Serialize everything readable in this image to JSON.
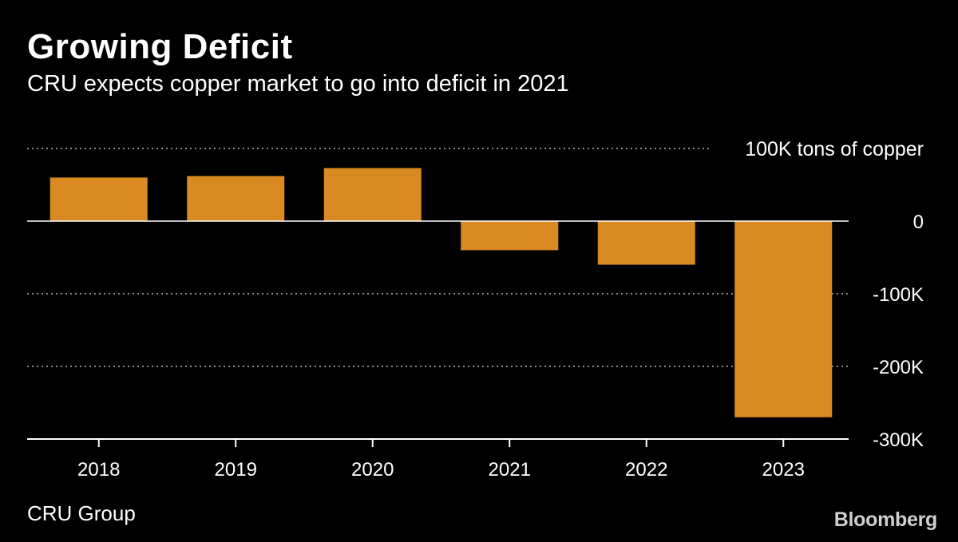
{
  "header": {
    "title": "Growing Deficit",
    "subtitle": "CRU expects copper market to go into deficit in 2021"
  },
  "footer": {
    "source": "CRU Group",
    "brand": "Bloomberg"
  },
  "colors": {
    "background": "#000000",
    "bar": "#d98a22",
    "text": "#ffffff",
    "grid": "#8a8a8a",
    "axis": "#ffffff"
  },
  "chart_data": {
    "type": "bar",
    "unit_label": "100K tons of copper",
    "categories": [
      "2018",
      "2019",
      "2020",
      "2021",
      "2022",
      "2023"
    ],
    "values": [
      60,
      62,
      73,
      -40,
      -60,
      -270
    ],
    "ylim": [
      -300,
      100
    ],
    "yticks": [
      {
        "value": 100,
        "label": "100K tons of copper"
      },
      {
        "value": 0,
        "label": "0"
      },
      {
        "value": -100,
        "label": "-100K"
      },
      {
        "value": -200,
        "label": "-200K"
      },
      {
        "value": -300,
        "label": "-300K"
      }
    ],
    "grid": true,
    "legend": false
  }
}
